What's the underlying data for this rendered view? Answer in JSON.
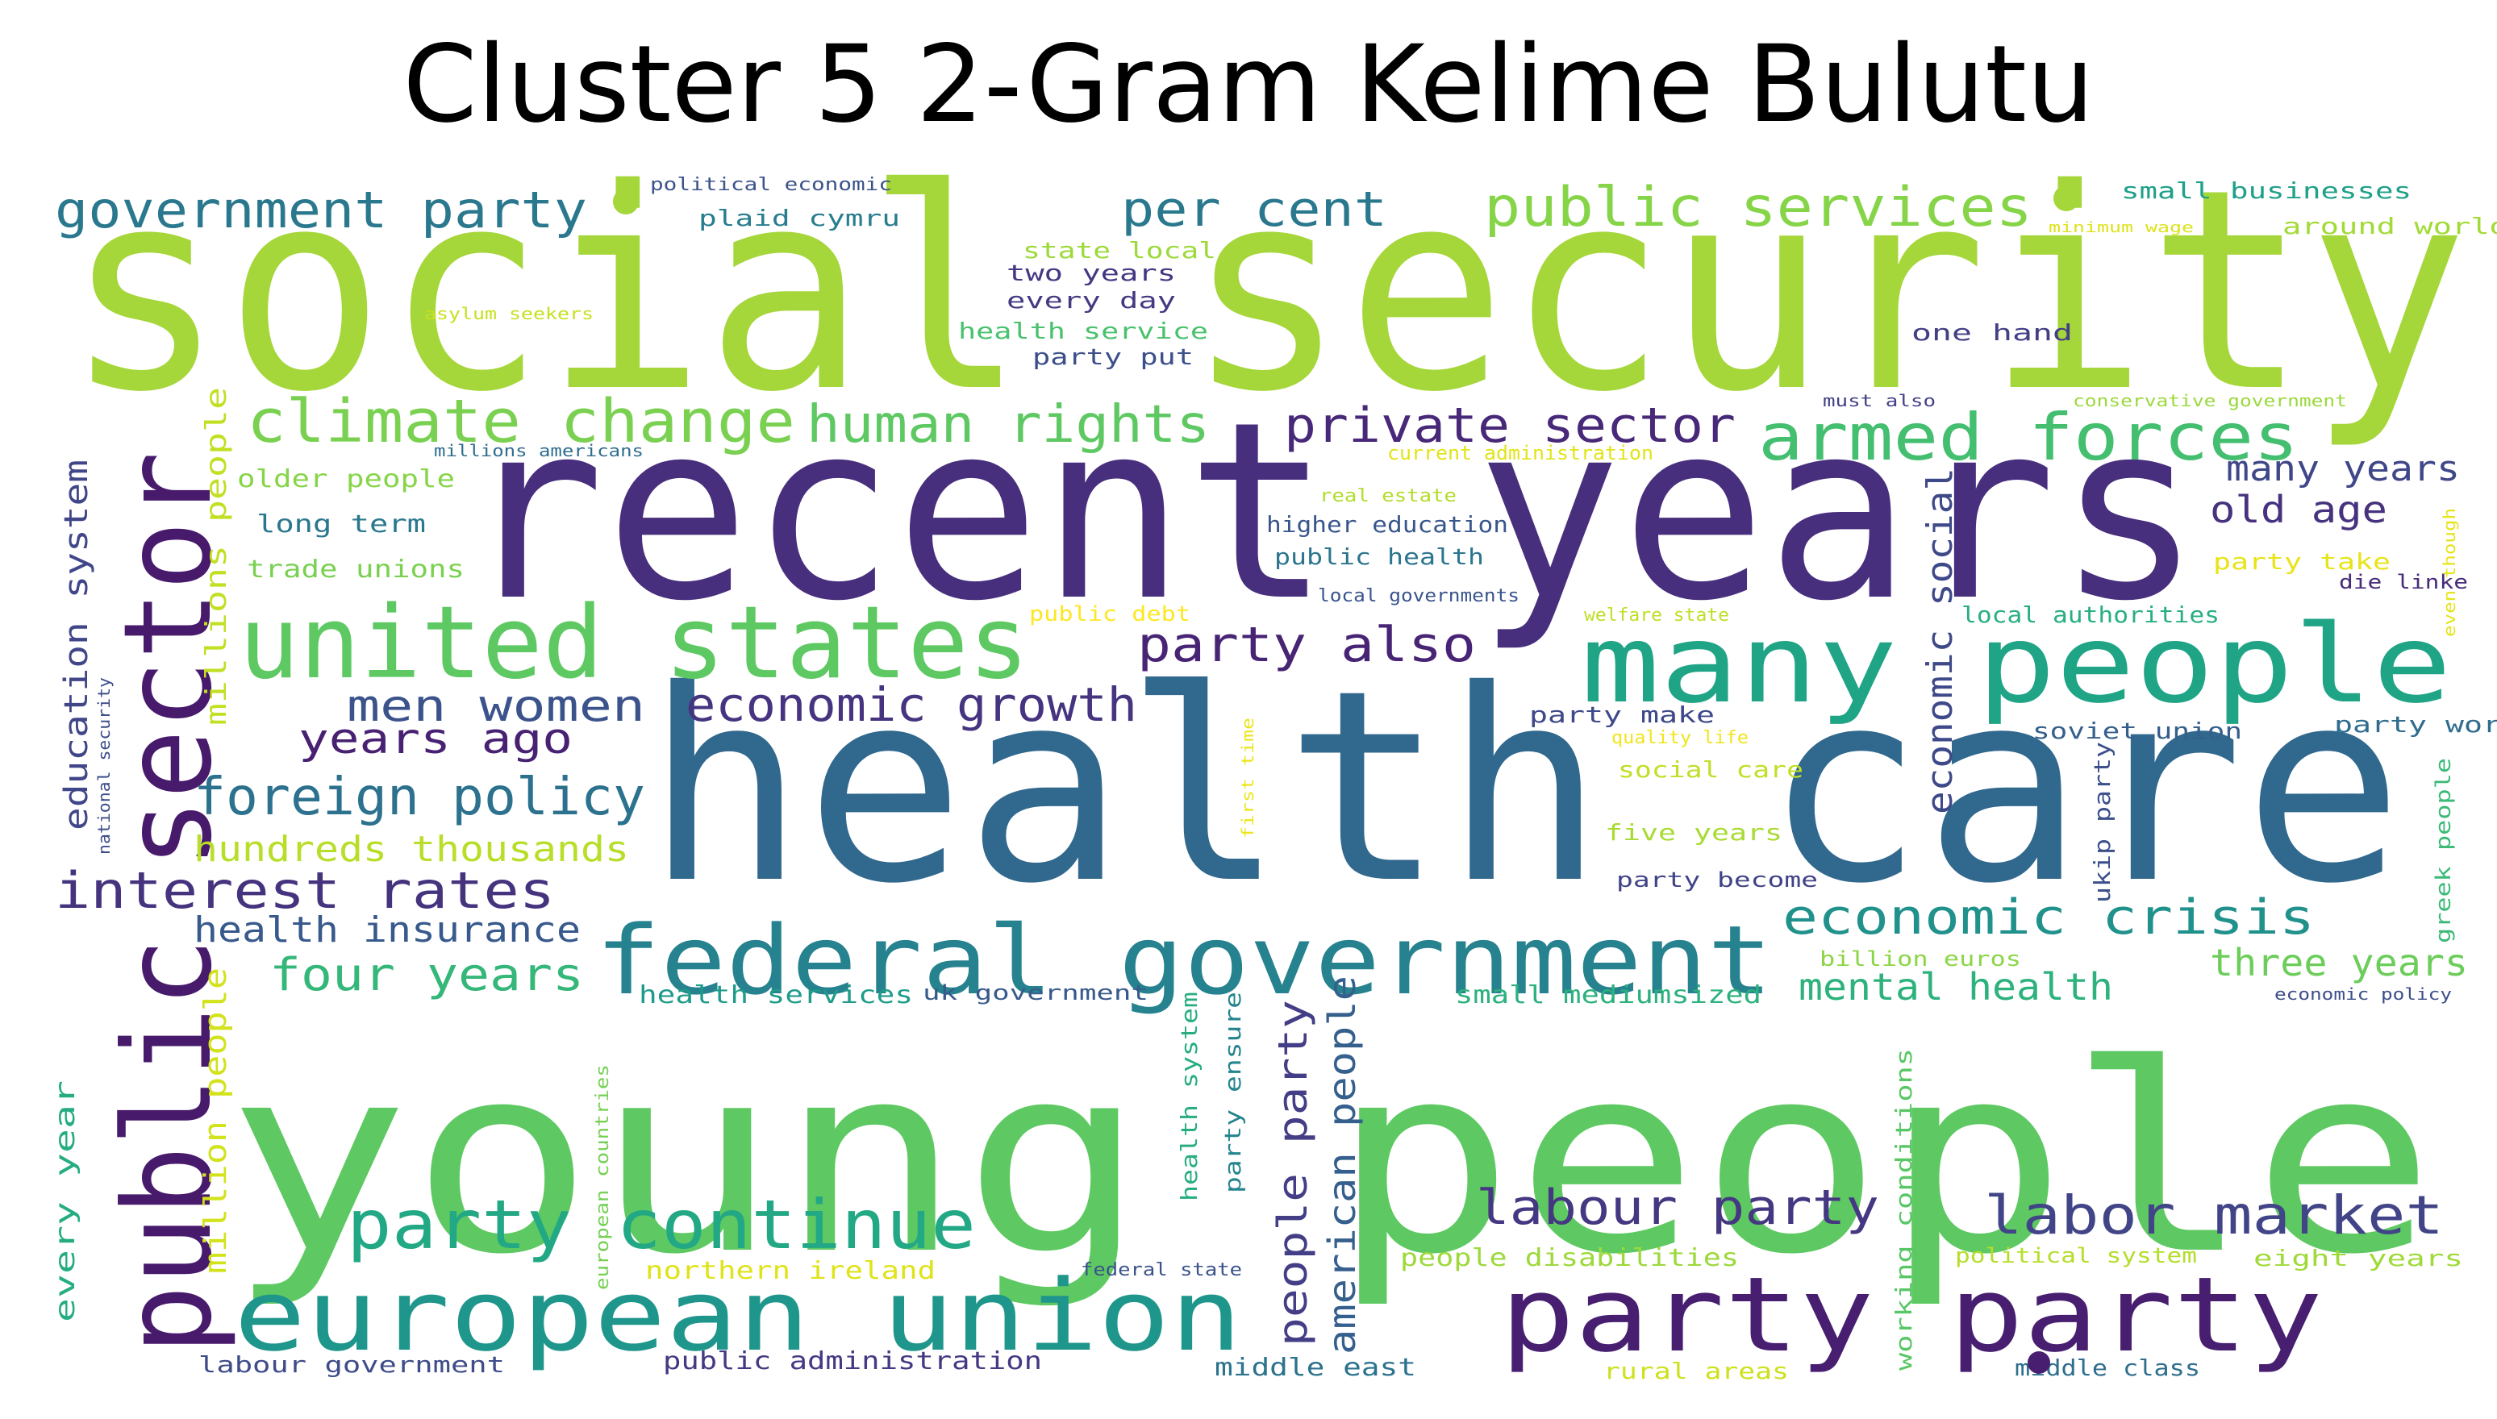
{
  "chart_data": {
    "type": "wordcloud",
    "title": "Cluster 5 2-Gram Kelime Bulutu",
    "palette": "viridis",
    "words": [
      {
        "text": "social security",
        "color": "#a5d63a"
      },
      {
        "text": "recent years",
        "color": "#472f7d"
      },
      {
        "text": "health care",
        "color": "#31688e"
      },
      {
        "text": "young people",
        "color": "#5ec962"
      },
      {
        "text": "public sector",
        "color": "#481a6c"
      },
      {
        "text": "many people",
        "color": "#20a486"
      },
      {
        "text": "united states",
        "color": "#5ec962"
      },
      {
        "text": "federal government",
        "color": "#26828e"
      },
      {
        "text": "european union",
        "color": "#1f968b"
      },
      {
        "text": "party party",
        "color": "#481f70"
      },
      {
        "text": "party continue",
        "color": "#22a884"
      },
      {
        "text": "armed forces",
        "color": "#44bf70"
      },
      {
        "text": "climate change",
        "color": "#7ad151"
      },
      {
        "text": "public services",
        "color": "#86d549"
      },
      {
        "text": "government party",
        "color": "#2a788e"
      },
      {
        "text": "human rights",
        "color": "#5ec962"
      },
      {
        "text": "private sector",
        "color": "#482878"
      },
      {
        "text": "foreign policy",
        "color": "#2c728e"
      },
      {
        "text": "economic growth",
        "color": "#463480"
      },
      {
        "text": "economic crisis",
        "color": "#21918c"
      },
      {
        "text": "interest rates",
        "color": "#46337e"
      },
      {
        "text": "labor market",
        "color": "#414487"
      },
      {
        "text": "labour party",
        "color": "#453781"
      },
      {
        "text": "per cent",
        "color": "#2a788e"
      },
      {
        "text": "party also",
        "color": "#482475"
      },
      {
        "text": "men women",
        "color": "#3b528b"
      },
      {
        "text": "years ago",
        "color": "#482173"
      },
      {
        "text": "four years",
        "color": "#35b779"
      },
      {
        "text": "health insurance",
        "color": "#38598c"
      },
      {
        "text": "hundreds thousands",
        "color": "#b8de29"
      },
      {
        "text": "people party",
        "color": "#433e85"
      },
      {
        "text": "american people",
        "color": "#355f8d"
      },
      {
        "text": "economic social",
        "color": "#3e4989"
      },
      {
        "text": "education system",
        "color": "#404688"
      },
      {
        "text": "three years",
        "color": "#6ccd5a"
      },
      {
        "text": "mental health",
        "color": "#2db27d"
      },
      {
        "text": "many years",
        "color": "#3f4788"
      },
      {
        "text": "old age",
        "color": "#46327e"
      },
      {
        "text": "millions people",
        "color": "#c2df23"
      },
      {
        "text": "million people",
        "color": "#d2e21b"
      },
      {
        "text": "every year",
        "color": "#25ac82"
      },
      {
        "text": "small businesses",
        "color": "#1fa088"
      },
      {
        "text": "around world",
        "color": "#a2da37"
      },
      {
        "text": "one hand",
        "color": "#423f85"
      },
      {
        "text": "plaid cymru",
        "color": "#287d8e"
      },
      {
        "text": "political economic",
        "color": "#3b528b"
      },
      {
        "text": "state local",
        "color": "#9dd93b"
      },
      {
        "text": "two years",
        "color": "#453882"
      },
      {
        "text": "every day",
        "color": "#443a83"
      },
      {
        "text": "health service",
        "color": "#4ac16d"
      },
      {
        "text": "party put",
        "color": "#3c4f8a"
      },
      {
        "text": "asylum seekers",
        "color": "#c8e020"
      },
      {
        "text": "minimum wage",
        "color": "#dde318"
      },
      {
        "text": "must also",
        "color": "#424086"
      },
      {
        "text": "conservative government",
        "color": "#9bd93c"
      },
      {
        "text": "millions americans",
        "color": "#2e6d8e"
      },
      {
        "text": "current administration",
        "color": "#e2e418"
      },
      {
        "text": "older people",
        "color": "#86d549"
      },
      {
        "text": "long term",
        "color": "#2a778e"
      },
      {
        "text": "trade unions",
        "color": "#7ad151"
      },
      {
        "text": "real estate",
        "color": "#b2dd2d"
      },
      {
        "text": "higher education",
        "color": "#39568c"
      },
      {
        "text": "public health",
        "color": "#2b758e"
      },
      {
        "text": "local governments",
        "color": "#3a548c"
      },
      {
        "text": "public debt",
        "color": "#fde725"
      },
      {
        "text": "welfare state",
        "color": "#bddf26"
      },
      {
        "text": "party take",
        "color": "#e7e419"
      },
      {
        "text": "die linke",
        "color": "#472c7a"
      },
      {
        "text": "even though",
        "color": "#e5e419"
      },
      {
        "text": "local authorities",
        "color": "#29af7f"
      },
      {
        "text": "party make",
        "color": "#3f4889"
      },
      {
        "text": "quality life",
        "color": "#f1e51d"
      },
      {
        "text": "soviet union",
        "color": "#355f8d"
      },
      {
        "text": "party work",
        "color": "#2f6c8e"
      },
      {
        "text": "social care",
        "color": "#c0df25"
      },
      {
        "text": "five years",
        "color": "#a8db34"
      },
      {
        "text": "first time",
        "color": "#ece51b"
      },
      {
        "text": "ukip party",
        "color": "#3c508b"
      },
      {
        "text": "greek people",
        "color": "#3aba76"
      },
      {
        "text": "party become",
        "color": "#404387"
      },
      {
        "text": "national security",
        "color": "#3d4e8a"
      },
      {
        "text": "billion euros",
        "color": "#8bd646"
      },
      {
        "text": "health services",
        "color": "#1e9b8a"
      },
      {
        "text": "uk government",
        "color": "#375a8c"
      },
      {
        "text": "small mediumsized",
        "color": "#2cb17e"
      },
      {
        "text": "economic policy",
        "color": "#3d4e8a"
      },
      {
        "text": "health system",
        "color": "#27ad81"
      },
      {
        "text": "party ensure",
        "color": "#25858e"
      },
      {
        "text": "european countries",
        "color": "#75d054"
      },
      {
        "text": "working conditions",
        "color": "#58c765"
      },
      {
        "text": "people disabilities",
        "color": "#9dd93b"
      },
      {
        "text": "political system",
        "color": "#b5de2b"
      },
      {
        "text": "eight years",
        "color": "#a0da39"
      },
      {
        "text": "northern ireland",
        "color": "#dfe318"
      },
      {
        "text": "federal state",
        "color": "#3b528b"
      },
      {
        "text": "labour government",
        "color": "#3e4c8a"
      },
      {
        "text": "public administration",
        "color": "#443983"
      },
      {
        "text": "middle east",
        "color": "#2c738e"
      },
      {
        "text": "rural areas",
        "color": "#cde11d"
      },
      {
        "text": "middle class",
        "color": "#2e6e8e"
      }
    ]
  }
}
